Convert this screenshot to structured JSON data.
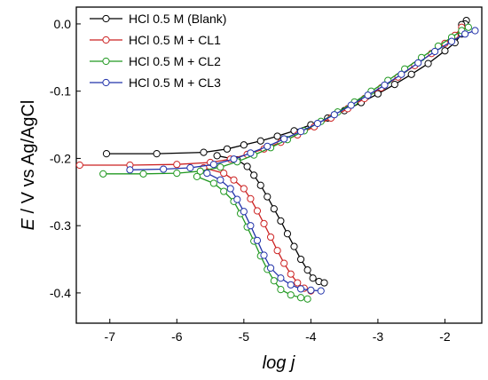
{
  "chart_data": {
    "type": "line",
    "xlabel": "log j",
    "ylabel_italic": "E",
    "ylabel_rest": " / V vs Ag/AgCl",
    "xlim": [
      -7.5,
      -1.45
    ],
    "ylim": [
      -0.445,
      0.025
    ],
    "xticks": [
      -7,
      -6,
      -5,
      -4,
      -3,
      -2
    ],
    "xtick_labels": [
      "-7",
      "-6",
      "-5",
      "-4",
      "-3",
      "-2"
    ],
    "yticks": [
      0.0,
      -0.1,
      -0.2,
      -0.3,
      -0.4
    ],
    "ytick_labels": [
      "0.0",
      "-0.1",
      "-0.2",
      "-0.3",
      "-0.4"
    ],
    "grid": false,
    "legend_position": "top-left",
    "series": [
      {
        "name": "HCl 0.5 M (Blank)",
        "color": "#000000",
        "points": [
          [
            -7.05,
            -0.193
          ],
          [
            -6.3,
            -0.193
          ],
          [
            -5.6,
            -0.191
          ],
          [
            -5.25,
            -0.186
          ],
          [
            -5.0,
            -0.18
          ],
          [
            -4.75,
            -0.174
          ],
          [
            -4.5,
            -0.167
          ],
          [
            -4.25,
            -0.159
          ],
          [
            -4.0,
            -0.15
          ],
          [
            -3.75,
            -0.14
          ],
          [
            -3.5,
            -0.129
          ],
          [
            -3.25,
            -0.117
          ],
          [
            -3.0,
            -0.104
          ],
          [
            -2.75,
            -0.09
          ],
          [
            -2.5,
            -0.075
          ],
          [
            -2.25,
            -0.059
          ],
          [
            -2.0,
            -0.04
          ],
          [
            -1.85,
            -0.028
          ],
          [
            -1.75,
            -0.015
          ],
          [
            -1.7,
            -0.002
          ],
          [
            -1.68,
            0.005
          ],
          [
            -1.7,
            0.0
          ],
          [
            -1.75,
            -0.001
          ]
        ],
        "cathodic": [
          [
            -5.4,
            -0.196
          ],
          [
            -5.1,
            -0.202
          ],
          [
            -4.95,
            -0.212
          ],
          [
            -4.85,
            -0.225
          ],
          [
            -4.75,
            -0.24
          ],
          [
            -4.65,
            -0.257
          ],
          [
            -4.55,
            -0.275
          ],
          [
            -4.45,
            -0.293
          ],
          [
            -4.35,
            -0.312
          ],
          [
            -4.25,
            -0.331
          ],
          [
            -4.15,
            -0.35
          ],
          [
            -4.05,
            -0.366
          ],
          [
            -3.97,
            -0.378
          ],
          [
            -3.88,
            -0.383
          ],
          [
            -3.8,
            -0.385
          ]
        ]
      },
      {
        "name": "HCl 0.5 M + CL1",
        "color": "#cc2222",
        "points": [
          [
            -7.45,
            -0.21
          ],
          [
            -6.7,
            -0.21
          ],
          [
            -6.0,
            -0.209
          ],
          [
            -5.5,
            -0.206
          ],
          [
            -5.2,
            -0.201
          ],
          [
            -4.95,
            -0.194
          ],
          [
            -4.7,
            -0.186
          ],
          [
            -4.45,
            -0.176
          ],
          [
            -4.2,
            -0.165
          ],
          [
            -3.95,
            -0.153
          ],
          [
            -3.7,
            -0.14
          ],
          [
            -3.45,
            -0.126
          ],
          [
            -3.2,
            -0.111
          ],
          [
            -2.95,
            -0.095
          ],
          [
            -2.7,
            -0.079
          ],
          [
            -2.45,
            -0.062
          ],
          [
            -2.2,
            -0.044
          ],
          [
            -2.0,
            -0.029
          ],
          [
            -1.85,
            -0.017
          ],
          [
            -1.75,
            -0.005
          ]
        ],
        "cathodic": [
          [
            -5.6,
            -0.214
          ],
          [
            -5.3,
            -0.222
          ],
          [
            -5.15,
            -0.232
          ],
          [
            -5.0,
            -0.245
          ],
          [
            -4.9,
            -0.26
          ],
          [
            -4.8,
            -0.278
          ],
          [
            -4.7,
            -0.297
          ],
          [
            -4.6,
            -0.317
          ],
          [
            -4.5,
            -0.337
          ],
          [
            -4.4,
            -0.356
          ],
          [
            -4.3,
            -0.372
          ],
          [
            -4.2,
            -0.385
          ],
          [
            -4.1,
            -0.393
          ],
          [
            -4.0,
            -0.397
          ]
        ]
      },
      {
        "name": "HCl 0.5 M + CL2",
        "color": "#229922",
        "points": [
          [
            -7.1,
            -0.223
          ],
          [
            -6.5,
            -0.223
          ],
          [
            -6.0,
            -0.222
          ],
          [
            -5.65,
            -0.219
          ],
          [
            -5.35,
            -0.213
          ],
          [
            -5.1,
            -0.205
          ],
          [
            -4.85,
            -0.195
          ],
          [
            -4.6,
            -0.184
          ],
          [
            -4.35,
            -0.172
          ],
          [
            -4.1,
            -0.159
          ],
          [
            -3.85,
            -0.145
          ],
          [
            -3.6,
            -0.131
          ],
          [
            -3.35,
            -0.116
          ],
          [
            -3.1,
            -0.1
          ],
          [
            -2.85,
            -0.084
          ],
          [
            -2.6,
            -0.067
          ],
          [
            -2.35,
            -0.05
          ],
          [
            -2.1,
            -0.033
          ],
          [
            -1.9,
            -0.02
          ],
          [
            -1.75,
            -0.01
          ],
          [
            -1.65,
            -0.005
          ]
        ],
        "cathodic": [
          [
            -5.7,
            -0.227
          ],
          [
            -5.45,
            -0.237
          ],
          [
            -5.3,
            -0.249
          ],
          [
            -5.15,
            -0.264
          ],
          [
            -5.05,
            -0.282
          ],
          [
            -4.95,
            -0.302
          ],
          [
            -4.85,
            -0.323
          ],
          [
            -4.75,
            -0.345
          ],
          [
            -4.65,
            -0.365
          ],
          [
            -4.55,
            -0.382
          ],
          [
            -4.45,
            -0.395
          ],
          [
            -4.3,
            -0.403
          ],
          [
            -4.15,
            -0.407
          ],
          [
            -4.05,
            -0.409
          ]
        ]
      },
      {
        "name": "HCl 0.5 M + CL3",
        "color": "#2233aa",
        "points": [
          [
            -6.7,
            -0.217
          ],
          [
            -6.2,
            -0.216
          ],
          [
            -5.8,
            -0.214
          ],
          [
            -5.45,
            -0.209
          ],
          [
            -5.15,
            -0.201
          ],
          [
            -4.9,
            -0.192
          ],
          [
            -4.65,
            -0.182
          ],
          [
            -4.4,
            -0.171
          ],
          [
            -4.15,
            -0.16
          ],
          [
            -3.9,
            -0.148
          ],
          [
            -3.65,
            -0.135
          ],
          [
            -3.4,
            -0.121
          ],
          [
            -3.15,
            -0.106
          ],
          [
            -2.9,
            -0.091
          ],
          [
            -2.65,
            -0.075
          ],
          [
            -2.4,
            -0.058
          ],
          [
            -2.15,
            -0.041
          ],
          [
            -1.9,
            -0.026
          ],
          [
            -1.7,
            -0.015
          ],
          [
            -1.55,
            -0.01
          ]
        ],
        "cathodic": [
          [
            -5.55,
            -0.222
          ],
          [
            -5.35,
            -0.232
          ],
          [
            -5.2,
            -0.245
          ],
          [
            -5.1,
            -0.261
          ],
          [
            -5.0,
            -0.279
          ],
          [
            -4.9,
            -0.3
          ],
          [
            -4.8,
            -0.322
          ],
          [
            -4.7,
            -0.344
          ],
          [
            -4.6,
            -0.363
          ],
          [
            -4.45,
            -0.378
          ],
          [
            -4.3,
            -0.388
          ],
          [
            -4.15,
            -0.394
          ],
          [
            -4.0,
            -0.396
          ],
          [
            -3.85,
            -0.397
          ]
        ]
      }
    ]
  }
}
